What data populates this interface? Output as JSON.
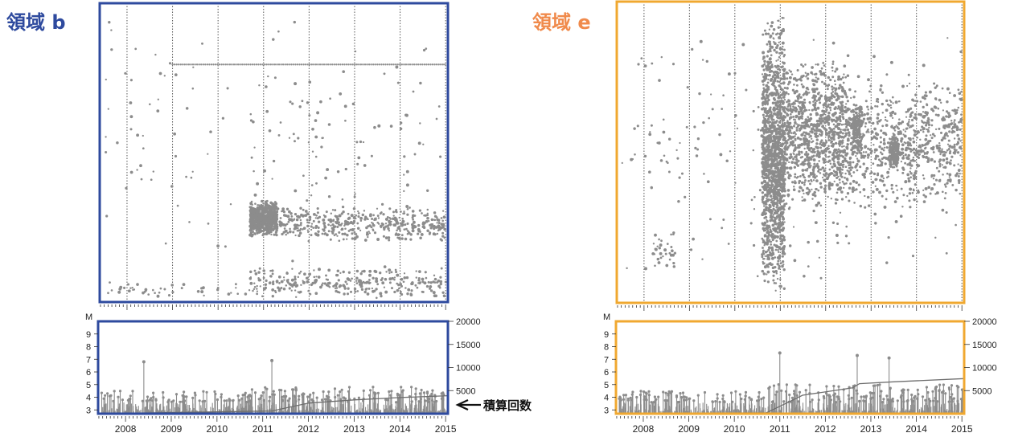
{
  "chart_data": [
    {
      "type": "scatter",
      "panel": "region-b",
      "title": "領域 b",
      "title_color": "#2E4A9E",
      "frame_color": "#2E4A9E",
      "dot_color": "#8C8C8C",
      "x_domain": [
        2007.4,
        2015.05
      ],
      "year_grid": [
        2008,
        2009,
        2010,
        2011,
        2012,
        2013,
        2014,
        2015
      ],
      "clusters": [
        {
          "x": [
            2010.7,
            2011.3
          ],
          "y": [
            0.66,
            0.78
          ],
          "count": 650
        },
        {
          "x": [
            2011.3,
            2015.0
          ],
          "y": [
            0.68,
            0.8
          ],
          "count": 420
        },
        {
          "x": [
            2010.7,
            2015.0
          ],
          "y": [
            0.88,
            0.99
          ],
          "count": 300
        },
        {
          "x": [
            2007.5,
            2010.7
          ],
          "y": [
            0.93,
            0.99
          ],
          "count": 45
        },
        {
          "x": [
            2007.5,
            2015.0
          ],
          "y": [
            0.01,
            0.9
          ],
          "count": 170
        }
      ],
      "row_lines": [
        {
          "y": 0.205,
          "x": [
            2009.0,
            2015.0
          ]
        }
      ]
    },
    {
      "type": "bar",
      "panel": "region-b-magnitude",
      "ylabel": "M",
      "y_ticks": [
        3,
        4,
        5,
        6,
        7,
        8,
        9
      ],
      "ylim": [
        2.7,
        10
      ],
      "y2_ticks": [
        5000,
        10000,
        15000,
        20000
      ],
      "y2lim": [
        0,
        20000
      ],
      "x_labels": [
        "2008",
        "2009",
        "2010",
        "2011",
        "2012",
        "2013",
        "2014",
        "2015"
      ],
      "bar_color": "#8C8C8C",
      "frame_color": "#2E4A9E",
      "peaks": [
        {
          "x": 2008.4,
          "m": 6.8
        },
        {
          "x": 2011.2,
          "m": 6.9
        }
      ],
      "cumulative": [
        [
          2007.4,
          0
        ],
        [
          2011.2,
          600
        ],
        [
          2012.0,
          2300
        ],
        [
          2013.0,
          3000
        ],
        [
          2014.0,
          3500
        ],
        [
          2015.05,
          3900
        ]
      ],
      "annotation": "積算回数"
    },
    {
      "type": "scatter",
      "panel": "region-e",
      "title": "領域 e",
      "title_color": "#F08A4B",
      "frame_color": "#F0A830",
      "dot_color": "#8C8C8C",
      "x_domain": [
        2007.4,
        2015.05
      ],
      "year_grid": [
        2008,
        2009,
        2010,
        2011,
        2012,
        2013,
        2014,
        2015
      ],
      "clusters": [
        {
          "x": [
            2010.6,
            2011.1
          ],
          "y": [
            0.05,
            0.99
          ],
          "count": 1300
        },
        {
          "x": [
            2011.1,
            2012.5
          ],
          "y": [
            0.18,
            0.7
          ],
          "count": 1000
        },
        {
          "x": [
            2012.5,
            2015.0
          ],
          "y": [
            0.25,
            0.7
          ],
          "count": 700
        },
        {
          "x": [
            2012.6,
            2012.8
          ],
          "y": [
            0.33,
            0.52
          ],
          "count": 160
        },
        {
          "x": [
            2013.4,
            2013.6
          ],
          "y": [
            0.44,
            0.56
          ],
          "count": 140
        },
        {
          "x": [
            2008.2,
            2008.7
          ],
          "y": [
            0.76,
            0.9
          ],
          "count": 35
        },
        {
          "x": [
            2007.5,
            2015.0
          ],
          "y": [
            0.01,
            0.99
          ],
          "count": 220
        }
      ],
      "row_lines": []
    },
    {
      "type": "bar",
      "panel": "region-e-magnitude",
      "ylabel": "M",
      "y_ticks": [
        3,
        4,
        5,
        6,
        7,
        8,
        9
      ],
      "ylim": [
        2.7,
        10
      ],
      "y2_ticks": [
        5000,
        10000,
        15000,
        20000
      ],
      "y2lim": [
        0,
        20000
      ],
      "x_labels": [
        "2008",
        "2009",
        "2010",
        "2011",
        "2012",
        "2013",
        "2014",
        "2015"
      ],
      "bar_color": "#8C8C8C",
      "frame_color": "#F0A830",
      "peaks": [
        {
          "x": 2011.0,
          "m": 7.5
        },
        {
          "x": 2012.7,
          "m": 7.3
        },
        {
          "x": 2013.4,
          "m": 7.1
        }
      ],
      "cumulative": [
        [
          2007.4,
          0
        ],
        [
          2010.7,
          200
        ],
        [
          2011.0,
          1600
        ],
        [
          2011.5,
          4000
        ],
        [
          2012.6,
          5600
        ],
        [
          2012.75,
          6500
        ],
        [
          2013.5,
          6900
        ],
        [
          2015.05,
          7600
        ]
      ],
      "annotation": ""
    }
  ]
}
